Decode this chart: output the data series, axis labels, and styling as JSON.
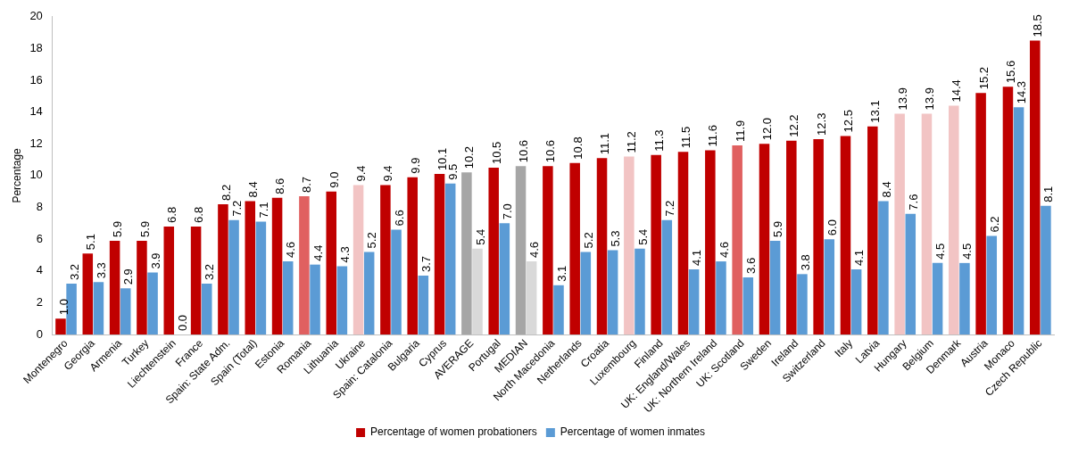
{
  "chart_data": {
    "type": "bar",
    "ylabel": "Percentage",
    "categories": [
      "Montenegro",
      "Georgia",
      "Armenia",
      "Turkey",
      "Liechtenstein",
      "France",
      "Spain: State Adm.",
      "Spain (Total)",
      "Estonia",
      "Romania",
      "Lithuania",
      "Ukraine",
      "Spain: Catalonia",
      "Bulgaria",
      "Cyprus",
      "AVERAGE",
      "Portugal",
      "MEDIAN",
      "North Macedonia",
      "Netherlands",
      "Croatia",
      "Luxembourg",
      "Finland",
      "UK: England/Wales",
      "UK: Northern Ireland",
      "UK: Scotland",
      "Sweden",
      "Ireland",
      "Switzerland",
      "Italy",
      "Latvia",
      "Hungary",
      "Belgium",
      "Denmark",
      "Austria",
      "Monaco",
      "Czech Republic"
    ],
    "series": [
      {
        "name": "Percentage of women probationers",
        "color": "#c00000",
        "values": [
          1.0,
          5.1,
          5.9,
          5.9,
          6.8,
          6.8,
          8.2,
          8.4,
          8.6,
          8.7,
          9.0,
          9.4,
          9.4,
          9.9,
          10.1,
          10.2,
          10.5,
          10.6,
          10.6,
          10.8,
          11.1,
          11.2,
          11.3,
          11.5,
          11.6,
          11.9,
          12.0,
          12.2,
          12.3,
          12.5,
          13.1,
          13.9,
          13.9,
          14.4,
          15.2,
          15.6,
          18.5
        ],
        "colors": [
          "#c00000",
          "#c00000",
          "#c00000",
          "#c00000",
          "#c00000",
          "#c00000",
          "#c00000",
          "#c00000",
          "#c00000",
          "#e06060",
          "#c00000",
          "#f2c4c4",
          "#c00000",
          "#c00000",
          "#c00000",
          "#a6a6a6",
          "#c00000",
          "#a6a6a6",
          "#c00000",
          "#c00000",
          "#c00000",
          "#f2c4c4",
          "#c00000",
          "#c00000",
          "#c00000",
          "#e06060",
          "#c00000",
          "#c00000",
          "#c00000",
          "#c00000",
          "#c00000",
          "#f2c4c4",
          "#f2c4c4",
          "#f2c4c4",
          "#c00000",
          "#c00000",
          "#c00000"
        ],
        "value_labels": [
          "1.0",
          "5.1",
          "5.9",
          "5.9",
          "6.8",
          "6.8",
          "8.2",
          "8.4",
          "8.6",
          "8.7",
          "9.0",
          "9.4",
          "9.4",
          "9.9",
          "10.1",
          "10.2",
          "10.5",
          "10.6",
          "10.6",
          "10.8",
          "11.1",
          "11.2",
          "11.3",
          "11.5",
          "11.6",
          "11.9",
          "12.0",
          "12.2",
          "12.3",
          "12.5",
          "13.1",
          "13.9",
          "13.9",
          "14.4",
          "15.2",
          "15.6",
          "18.5"
        ]
      },
      {
        "name": "Percentage of women inmates",
        "color": "#5b9bd5",
        "values": [
          3.2,
          3.3,
          2.9,
          3.9,
          0.0,
          3.2,
          7.2,
          7.1,
          4.6,
          4.4,
          4.3,
          5.2,
          6.6,
          3.7,
          9.5,
          5.4,
          7.0,
          4.6,
          3.1,
          5.2,
          5.3,
          5.4,
          7.2,
          4.1,
          4.6,
          3.6,
          5.9,
          3.8,
          6.0,
          4.1,
          8.4,
          7.6,
          4.5,
          4.5,
          6.2,
          14.3,
          8.1
        ],
        "colors": [
          "#5b9bd5",
          "#5b9bd5",
          "#5b9bd5",
          "#5b9bd5",
          "#5b9bd5",
          "#5b9bd5",
          "#5b9bd5",
          "#5b9bd5",
          "#5b9bd5",
          "#5b9bd5",
          "#5b9bd5",
          "#5b9bd5",
          "#5b9bd5",
          "#5b9bd5",
          "#5b9bd5",
          "#d9d9d9",
          "#5b9bd5",
          "#d9d9d9",
          "#5b9bd5",
          "#5b9bd5",
          "#5b9bd5",
          "#5b9bd5",
          "#5b9bd5",
          "#5b9bd5",
          "#5b9bd5",
          "#5b9bd5",
          "#5b9bd5",
          "#5b9bd5",
          "#5b9bd5",
          "#5b9bd5",
          "#5b9bd5",
          "#5b9bd5",
          "#5b9bd5",
          "#5b9bd5",
          "#5b9bd5",
          "#5b9bd5",
          "#5b9bd5"
        ],
        "value_labels": [
          "3.2",
          "3.3",
          "2.9",
          "3.9",
          "0.0",
          "3.2",
          "7.2",
          "7.1",
          "4.6",
          "4.4",
          "4.3",
          "5.2",
          "6.6",
          "3.7",
          "9.5",
          "5.4",
          "7.0",
          "4.6",
          "3.1",
          "5.2",
          "5.3",
          "5.4",
          "7.2",
          "4.1",
          "4.6",
          "3.6",
          "5.9",
          "3.8",
          "6.0",
          "4.1",
          "8.4",
          "7.6",
          "4.5",
          "4.5",
          "6.2",
          "14.3",
          "8.1"
        ]
      }
    ],
    "ylim": [
      0,
      20
    ],
    "yticks": [
      0,
      2,
      4,
      6,
      8,
      10,
      12,
      14,
      16,
      18,
      20
    ],
    "grid": false,
    "legend": "bottom"
  }
}
